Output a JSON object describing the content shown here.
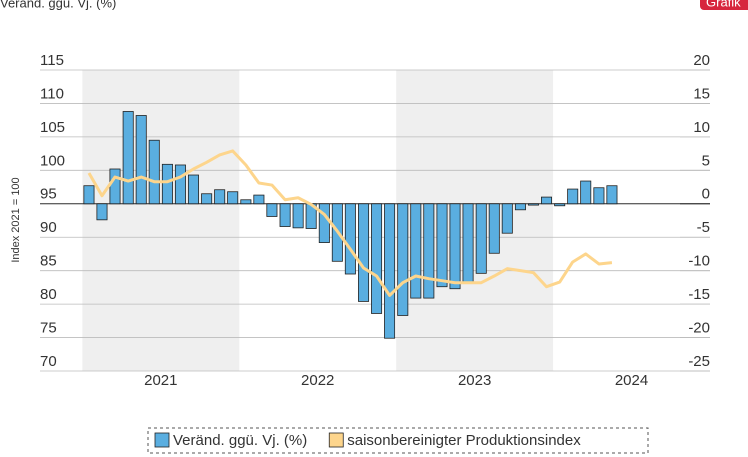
{
  "chart_data": {
    "type": "combo",
    "subtitle": "Veränd. ggü. Vj. (%)",
    "badge": "Grafik",
    "y_label": "Index 2021 = 100",
    "x": [
      2021.042,
      2021.125,
      2021.208,
      2021.292,
      2021.375,
      2021.458,
      2021.542,
      2021.625,
      2021.708,
      2021.792,
      2021.875,
      2021.958,
      2022.042,
      2022.125,
      2022.208,
      2022.292,
      2022.375,
      2022.458,
      2022.542,
      2022.625,
      2022.708,
      2022.792,
      2022.875,
      2022.958,
      2023.042,
      2023.125,
      2023.208,
      2023.292,
      2023.375,
      2023.458,
      2023.542,
      2023.625,
      2023.708,
      2023.792,
      2023.875,
      2023.958,
      2024.042,
      2024.125,
      2024.208,
      2024.292,
      2024.375
    ],
    "series": [
      {
        "name": "Veränd. ggü. Vj. (%)",
        "type": "bar",
        "axis": "y2",
        "color": "#5aaee0",
        "values": [
          2.7,
          -2.4,
          5.2,
          13.8,
          13.2,
          9.5,
          5.9,
          5.8,
          4.3,
          1.5,
          2.1,
          1.8,
          0.6,
          1.3,
          -1.9,
          -3.4,
          -3.6,
          -3.7,
          -5.8,
          -8.6,
          -10.5,
          -14.6,
          -16.4,
          -20.1,
          -16.7,
          -14.1,
          -14.1,
          -12.4,
          -12.7,
          -11.7,
          -10.4,
          -7.4,
          -4.4,
          -0.9,
          -0.2,
          1.0,
          -0.3,
          2.2,
          3.4,
          2.4,
          2.7
        ]
      },
      {
        "name": "saisonbereinigter Produktionsindex",
        "type": "line",
        "color": "#fdd58c",
        "values": [
          99.6,
          96.2,
          99.0,
          98.4,
          99.0,
          98.3,
          98.3,
          99.0,
          100.2,
          101.2,
          102.3,
          102.9,
          100.8,
          98.1,
          97.8,
          95.6,
          95.9,
          94.9,
          93.4,
          90.9,
          88.2,
          85.4,
          84.2,
          81.3,
          83.2,
          84.2,
          83.8,
          83.5,
          83.2,
          83.2,
          83.2,
          84.2,
          85.3,
          85.0,
          84.7,
          82.6,
          83.3,
          86.3,
          87.5,
          86.0,
          86.2
        ]
      }
    ],
    "xlim": [
      2020.73,
      2025
    ],
    "xticks": [
      {
        "value": 2021.5,
        "label": "2021"
      },
      {
        "value": 2022.5,
        "label": "2022"
      },
      {
        "value": 2023.5,
        "label": "2023"
      },
      {
        "value": 2024.5,
        "label": "2024"
      }
    ],
    "ylim": [
      70,
      115
    ],
    "yticks": [
      70,
      75,
      80,
      85,
      90,
      95,
      100,
      105,
      110,
      115
    ],
    "y2lim": [
      -25,
      20
    ],
    "y2ticks": [
      -25,
      -20,
      -15,
      -10,
      -5,
      0,
      5,
      10,
      15,
      20
    ],
    "shaded_spans": [
      [
        2021,
        2022
      ],
      [
        2023,
        2024
      ]
    ],
    "grid": true,
    "legend": "bottom"
  }
}
